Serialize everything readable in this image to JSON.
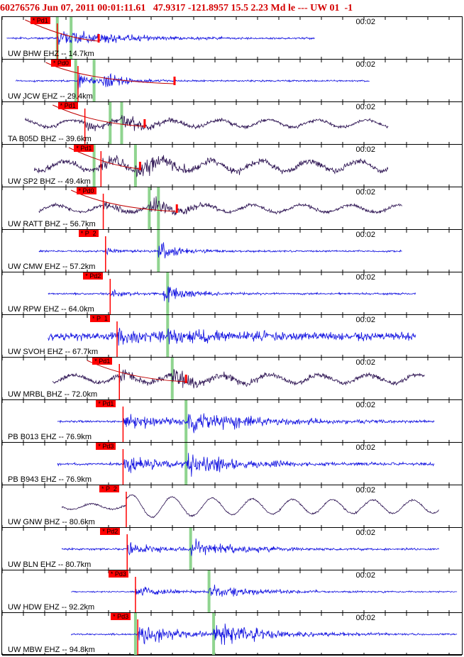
{
  "header": {
    "title": "60276576 Jun 07, 2011 00:01:11.61   47.9317 -121.8957 15.5 2.23 Md le --- UW 01  -1"
  },
  "colors": {
    "blue_trace": "#1010e0",
    "dark_trace": "#2a1050",
    "pick": "#ff0000",
    "secondary_pick": "#8fd48f",
    "header_text": "#d40000"
  },
  "panels": [
    {
      "label": "UW BHW EHZ -- 14.7km",
      "pick_label": "* Pd1",
      "time": "00:02",
      "trace": "blue",
      "noise": 0.05,
      "burst": 0.75,
      "s_amp": 0.2,
      "dec": 0.05,
      "p": 0.12,
      "s": 0.17,
      "red": 0.21,
      "g1": 0.12,
      "g2": 0.15,
      "end": 0.68,
      "start": 0.01,
      "curve": 1
    },
    {
      "label": "UW JCW EHZ -- 29.4km",
      "pick_label": "* Pd0",
      "time": "00:02",
      "trace": "blue",
      "noise": 0.04,
      "burst": 0.95,
      "s_amp": 0.75,
      "dec": 0.16,
      "p": 0.165,
      "s": 0.22,
      "red": 0.375,
      "g1": 0.16,
      "g2": 0.2,
      "end": 0.8,
      "start": 0.03,
      "curve": 1
    },
    {
      "label": "TA B05D BHZ -- 39.6km",
      "pick_label": "* Pd1",
      "time": "00:02",
      "trace": "dark",
      "noise": 0.18,
      "burst": 0.5,
      "s_amp": 0.55,
      "dec": 0.1,
      "p": 0.18,
      "s": 0.26,
      "red": 0.31,
      "g1": 0.235,
      "g2": 0.26,
      "end": 0.84,
      "start": 0.05,
      "curve": 1
    },
    {
      "label": "UW SP2 BHZ -- 49.4km",
      "pick_label": "* Pd1",
      "time": "00:02",
      "trace": "dark",
      "noise": 0.45,
      "burst": 0.55,
      "s_amp": 0.7,
      "dec": 0.1,
      "p": 0.215,
      "s": 0.29,
      "red": 0.3,
      "g1": 0.2,
      "g2": 0.29,
      "end": 0.84,
      "start": 0.07,
      "curve": 1
    },
    {
      "label": "UW RATT BHZ -- 56.7km",
      "pick_label": "* Pd0",
      "time": "00:02",
      "trace": "dark",
      "noise": 0.18,
      "burst": 0.55,
      "s_amp": 0.85,
      "dec": 0.12,
      "p": 0.22,
      "s": 0.32,
      "red": 0.38,
      "g1": 0.32,
      "g2": 0.34,
      "end": 0.87,
      "start": 0.08,
      "curve": 1
    },
    {
      "label": "UW CMW EHZ -- 57.2km",
      "pick_label": "* P  2",
      "time": "00:02",
      "trace": "blue",
      "noise": 0.04,
      "burst": 0.3,
      "s_amp": 0.9,
      "dec": 0.13,
      "p": 0.225,
      "s": 0.34,
      "red": null,
      "g1": 0.34,
      "g2": null,
      "end": 0.87,
      "start": 0.08,
      "curve": 0
    },
    {
      "label": "UW RPW EHZ -- 64.0km",
      "pick_label": "* Pd2",
      "time": "00:02",
      "trace": "blue",
      "noise": 0.05,
      "burst": 0.3,
      "s_amp": 0.85,
      "dec": 0.12,
      "p": 0.235,
      "s": 0.35,
      "red": null,
      "g1": 0.36,
      "g2": null,
      "end": 0.9,
      "start": 0.1,
      "curve": 0
    },
    {
      "label": "UW SVOH EHZ -- 67.7km",
      "pick_label": "* P  1",
      "time": "00:02",
      "trace": "blue",
      "noise": 0.4,
      "burst": 0.7,
      "s_amp": 0.65,
      "dec": 0.08,
      "p": 0.25,
      "s": 0.36,
      "red": null,
      "g1": 0.36,
      "g2": null,
      "end": 0.9,
      "start": 0.1,
      "curve": 0
    },
    {
      "label": "UW MRBL BHZ -- 72.0km",
      "pick_label": "* Pd1",
      "time": "00:02",
      "trace": "dark",
      "noise": 0.3,
      "burst": 0.6,
      "s_amp": 0.7,
      "dec": 0.09,
      "p": 0.255,
      "s": 0.37,
      "red": 0.4,
      "g1": 0.37,
      "g2": null,
      "end": 0.92,
      "start": 0.11,
      "curve": 1
    },
    {
      "label": "PB B013 EHZ -- 76.9km",
      "pick_label": "* Pd1",
      "time": "00:02",
      "trace": "blue",
      "noise": 0.06,
      "burst": 0.7,
      "s_amp": 0.8,
      "dec": 0.04,
      "p": 0.263,
      "s": 0.4,
      "red": null,
      "g1": 0.4,
      "g2": null,
      "end": 0.94,
      "start": 0.12,
      "curve": 0
    },
    {
      "label": "PB B943 EHZ -- 76.9km",
      "pick_label": "* Pd3",
      "time": "00:02",
      "trace": "blue",
      "noise": 0.08,
      "burst": 0.75,
      "s_amp": 0.8,
      "dec": 0.05,
      "p": 0.263,
      "s": 0.4,
      "red": null,
      "g1": 0.4,
      "g2": null,
      "end": 0.94,
      "start": 0.12,
      "curve": 0
    },
    {
      "label": "UW GNW BHZ -- 80.6km",
      "pick_label": "* P  2",
      "time": "00:02",
      "trace": "wave",
      "noise": 0.0,
      "burst": 0.35,
      "s_amp": 0.5,
      "dec": 0.0,
      "p": 0.27,
      "s": 0.41,
      "red": null,
      "g1": null,
      "g2": null,
      "end": 0.95,
      "start": 0.13,
      "curve": 0
    },
    {
      "label": "UW BLN EHZ -- 80.7km",
      "pick_label": "* Pd2",
      "time": "00:02",
      "trace": "blue",
      "noise": 0.05,
      "burst": 0.5,
      "s_amp": 0.7,
      "dec": 0.06,
      "p": 0.272,
      "s": 0.41,
      "red": null,
      "g1": 0.41,
      "g2": null,
      "end": 0.95,
      "start": 0.13,
      "curve": 0
    },
    {
      "label": "UW HDW EHZ -- 92.2km",
      "pick_label": "* Pd3",
      "time": "00:02",
      "trace": "blue",
      "noise": 0.02,
      "burst": 0.45,
      "s_amp": 0.55,
      "dec": 0.06,
      "p": 0.29,
      "s": 0.45,
      "red": null,
      "g1": 0.45,
      "g2": null,
      "end": 0.99,
      "start": 0.15,
      "curve": 0
    },
    {
      "label": "UW MBW EHZ -- 94.8km",
      "pick_label": "* Pd3",
      "time": "00:02",
      "trace": "blue",
      "noise": 0.03,
      "burst": 0.95,
      "s_amp": 0.9,
      "dec": 0.05,
      "p": 0.295,
      "s": 0.46,
      "red": null,
      "g1": 0.29,
      "g2": 0.46,
      "end": 0.99,
      "start": 0.15,
      "curve": 0
    }
  ]
}
